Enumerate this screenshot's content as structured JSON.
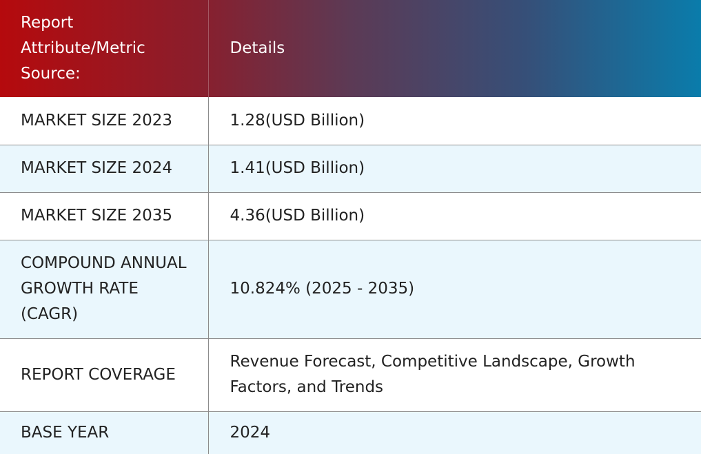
{
  "table": {
    "header": {
      "col1": "Report Attribute/Metric Source:",
      "col2": "Details"
    },
    "rows": [
      {
        "attribute": "MARKET SIZE 2023",
        "details": "1.28(USD Billion)"
      },
      {
        "attribute": "MARKET SIZE 2024",
        "details": "1.41(USD Billion)"
      },
      {
        "attribute": "MARKET SIZE 2035",
        "details": "4.36(USD Billion)"
      },
      {
        "attribute": "COMPOUND ANNUAL GROWTH RATE (CAGR)",
        "details": "10.824% (2025 - 2035)"
      },
      {
        "attribute": "REPORT COVERAGE",
        "details": "Revenue Forecast, Competitive Landscape, Growth Factors, and Trends"
      },
      {
        "attribute": "BASE YEAR",
        "details": "2024"
      }
    ]
  },
  "colors": {
    "header_gradient_start": "#b50a0d",
    "header_gradient_end": "#0a7cab",
    "alt_row": "#eaf7fd",
    "row_border": "#8c8c8c"
  }
}
